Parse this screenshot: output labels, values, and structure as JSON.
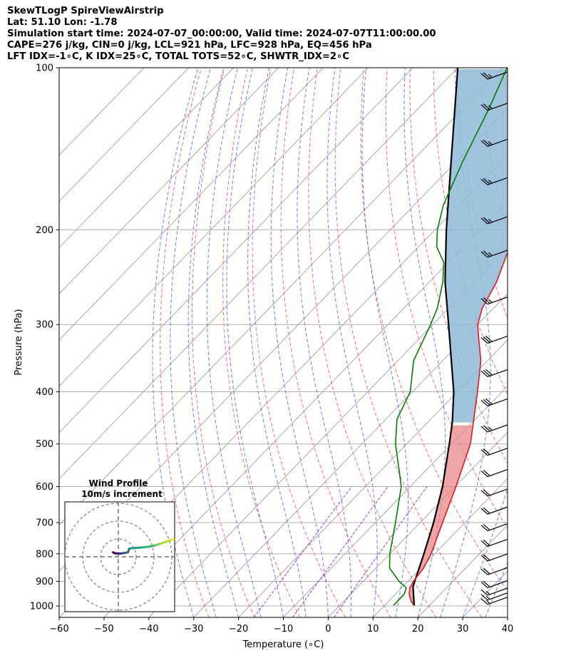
{
  "header": {
    "line1": "SkewTLogP SpireViewAirstrip",
    "line2": "Lat: 51.10   Lon: -1.78",
    "line3": "Simulation start time: 2024-07-07_00:00:00, Valid time: 2024-07-07T11:00:00.00",
    "line4": "CAPE=276 j/kg, CIN=0 j/kg, LCL=921 hPa, LFC=928 hPa, EQ=456 hPa",
    "line5": "LFT IDX=-1∘C, K IDX=25∘C, TOTAL TOTS=52∘C, SHWTR_IDX=2∘C"
  },
  "chart_data": [
    {
      "type": "line",
      "name": "skew-t-log-p",
      "xlabel": "Temperature (∘C)",
      "ylabel": "Pressure (hPa)",
      "xlim": [
        -60,
        40
      ],
      "ylim": [
        1050,
        100
      ],
      "y_scale": "log",
      "x_ticks": [
        -60,
        -50,
        -40,
        -30,
        -20,
        -10,
        0,
        10,
        20,
        30,
        40
      ],
      "x_tick_labels": [
        "−60",
        "−50",
        "−40",
        "−30",
        "−20",
        "−10",
        "0",
        "10",
        "20",
        "30",
        "40"
      ],
      "y_ticks": [
        100,
        200,
        300,
        400,
        500,
        600,
        700,
        800,
        900,
        1000
      ],
      "y_tick_labels": [
        "100",
        "200",
        "300",
        "400",
        "500",
        "600",
        "700",
        "800",
        "900",
        "1000"
      ],
      "grid": true,
      "series": [
        {
          "role": "temperature",
          "color": "#e31a1c",
          "points": [
            {
              "p": 998,
              "t": 16.6
            },
            {
              "p": 980,
              "t": 15.0
            },
            {
              "p": 950,
              "t": 13.0
            },
            {
              "p": 925,
              "t": 11.8
            },
            {
              "p": 900,
              "t": 11.2
            },
            {
              "p": 850,
              "t": 10.6
            },
            {
              "p": 800,
              "t": 9.2
            },
            {
              "p": 700,
              "t": 5.0
            },
            {
              "p": 600,
              "t": 0.2
            },
            {
              "p": 500,
              "t": -5.8
            },
            {
              "p": 456,
              "t": -9.8
            },
            {
              "p": 400,
              "t": -15.5
            },
            {
              "p": 350,
              "t": -21.5
            },
            {
              "p": 320,
              "t": -26.5
            },
            {
              "p": 300,
              "t": -30.0
            },
            {
              "p": 280,
              "t": -32.5
            },
            {
              "p": 250,
              "t": -35.0
            },
            {
              "p": 220,
              "t": -39.0
            },
            {
              "p": 200,
              "t": -43.5
            },
            {
              "p": 170,
              "t": -48.0
            },
            {
              "p": 140,
              "t": -53.5
            },
            {
              "p": 120,
              "t": -58.0
            },
            {
              "p": 100,
              "t": -63.0
            }
          ]
        },
        {
          "role": "dewpoint",
          "color": "#008000",
          "points": [
            {
              "p": 998,
              "t": 12.0
            },
            {
              "p": 950,
              "t": 11.9
            },
            {
              "p": 925,
              "t": 11.0
            },
            {
              "p": 900,
              "t": 8.0
            },
            {
              "p": 850,
              "t": 3.0
            },
            {
              "p": 800,
              "t": 0.0
            },
            {
              "p": 700,
              "t": -5.5
            },
            {
              "p": 600,
              "t": -12.0
            },
            {
              "p": 550,
              "t": -17.0
            },
            {
              "p": 500,
              "t": -22.5
            },
            {
              "p": 450,
              "t": -27.5
            },
            {
              "p": 400,
              "t": -30.5
            },
            {
              "p": 350,
              "t": -36.5
            },
            {
              "p": 300,
              "t": -40.5
            },
            {
              "p": 280,
              "t": -42.5
            },
            {
              "p": 250,
              "t": -47.0
            },
            {
              "p": 230,
              "t": -51.0
            },
            {
              "p": 215,
              "t": -56.0
            },
            {
              "p": 200,
              "t": -59.5
            },
            {
              "p": 180,
              "t": -63.5
            },
            {
              "p": 150,
              "t": -68.5
            },
            {
              "p": 120,
              "t": -74.0
            },
            {
              "p": 100,
              "t": -79.0
            }
          ]
        },
        {
          "role": "parcel",
          "color": "#000000",
          "points": [
            {
              "p": 998,
              "t": 16.6
            },
            {
              "p": 921,
              "t": 12.3
            },
            {
              "p": 900,
              "t": 11.5
            },
            {
              "p": 800,
              "t": 7.6
            },
            {
              "p": 700,
              "t": 3.0
            },
            {
              "p": 600,
              "t": -2.8
            },
            {
              "p": 500,
              "t": -10.5
            },
            {
              "p": 456,
              "t": -14.5
            },
            {
              "p": 400,
              "t": -20.8
            },
            {
              "p": 300,
              "t": -36.5
            },
            {
              "p": 250,
              "t": -46.5
            },
            {
              "p": 200,
              "t": -57.5
            },
            {
              "p": 150,
              "t": -71.0
            },
            {
              "p": 100,
              "t": -90.0
            }
          ]
        }
      ],
      "shading": {
        "cin_color": "#e8878a",
        "cape_color": "#8fb9d8"
      },
      "wind_barbs_knots": [
        {
          "p": 993,
          "speed": 15,
          "dir": 240
        },
        {
          "p": 975,
          "speed": 15,
          "dir": 240
        },
        {
          "p": 955,
          "speed": 15,
          "dir": 240
        },
        {
          "p": 925,
          "speed": 20,
          "dir": 245
        },
        {
          "p": 875,
          "speed": 20,
          "dir": 250
        },
        {
          "p": 825,
          "speed": 20,
          "dir": 255
        },
        {
          "p": 775,
          "speed": 20,
          "dir": 255
        },
        {
          "p": 725,
          "speed": 20,
          "dir": 260
        },
        {
          "p": 675,
          "speed": 20,
          "dir": 260
        },
        {
          "p": 625,
          "speed": 20,
          "dir": 260
        },
        {
          "p": 575,
          "speed": 20,
          "dir": 260
        },
        {
          "p": 525,
          "speed": 20,
          "dir": 260
        },
        {
          "p": 475,
          "speed": 25,
          "dir": 260
        },
        {
          "p": 425,
          "speed": 30,
          "dir": 260
        },
        {
          "p": 375,
          "speed": 30,
          "dir": 260
        },
        {
          "p": 325,
          "speed": 30,
          "dir": 260
        },
        {
          "p": 275,
          "speed": 25,
          "dir": 260
        },
        {
          "p": 225,
          "speed": 25,
          "dir": 260
        },
        {
          "p": 195,
          "speed": 25,
          "dir": 260
        },
        {
          "p": 165,
          "speed": 25,
          "dir": 260
        },
        {
          "p": 140,
          "speed": 25,
          "dir": 260
        },
        {
          "p": 120,
          "speed": 25,
          "dir": 260
        },
        {
          "p": 105,
          "speed": 25,
          "dir": 260
        }
      ]
    },
    {
      "type": "scatter",
      "name": "hodograph",
      "title": "Wind Profile",
      "subtitle": "10m/s increment",
      "ring_interval_ms": 10,
      "rings": [
        10,
        20,
        30
      ],
      "points": [
        {
          "u": -3.0,
          "v": 2.5
        },
        {
          "u": -2.0,
          "v": 2.0
        },
        {
          "u": -0.5,
          "v": 1.8
        },
        {
          "u": 1.0,
          "v": 1.8
        },
        {
          "u": 2.5,
          "v": 2.0
        },
        {
          "u": 4.0,
          "v": 2.2
        },
        {
          "u": 5.5,
          "v": 2.6
        },
        {
          "u": 6.0,
          "v": 4.5
        },
        {
          "u": 7.5,
          "v": 4.8
        },
        {
          "u": 10.0,
          "v": 5.0
        },
        {
          "u": 14.0,
          "v": 5.3
        },
        {
          "u": 18.0,
          "v": 5.8
        },
        {
          "u": 21.0,
          "v": 6.5
        },
        {
          "u": 24.0,
          "v": 7.5
        },
        {
          "u": 27.0,
          "v": 8.5
        },
        {
          "u": 30.0,
          "v": 9.5
        },
        {
          "u": 31.0,
          "v": 10.0
        }
      ]
    }
  ]
}
